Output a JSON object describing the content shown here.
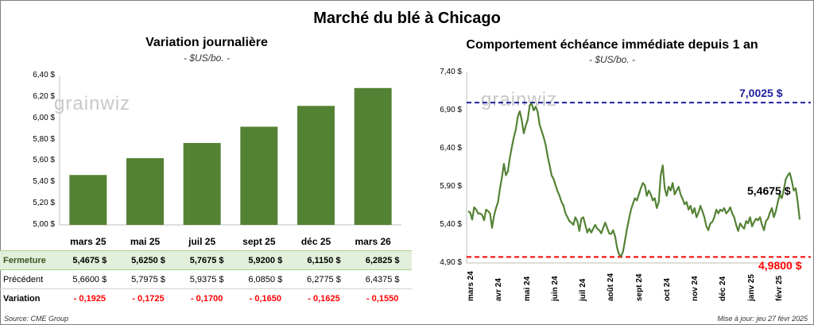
{
  "title": "Marché du blé à Chicago",
  "source": "Source: CME Group",
  "updated": "Mise à jour: jeu 27 févr 2025",
  "watermark": "grainwiz",
  "table": {
    "row_labels": [
      "Fermeture",
      "Précédent",
      "Variation"
    ],
    "closing": [
      "5,4675  $",
      "5,6250  $",
      "5,7675  $",
      "5,9200  $",
      "6,1150  $",
      "6,2825  $"
    ],
    "previous": [
      "5,6600  $",
      "5,7975  $",
      "5,9375  $",
      "6,0850  $",
      "6,2775  $",
      "6,4375  $"
    ],
    "change": [
      "- 0,1925",
      "- 0,1725",
      "- 0,1700",
      "- 0,1650",
      "- 0,1625",
      "- 0,1550"
    ]
  },
  "colors": {
    "bar": "#548235",
    "line": "#548235",
    "high": "#1f1fa0",
    "low": "#ff0000"
  },
  "chart_data": [
    {
      "type": "bar",
      "title": "Variation journalière",
      "subtitle": "- $US/bo. -",
      "categories": [
        "mars 25",
        "mai 25",
        "juil 25",
        "sept 25",
        "déc 25",
        "mars 26"
      ],
      "values": [
        5.4675,
        5.625,
        5.7675,
        5.92,
        6.115,
        6.2825
      ],
      "ylim": [
        5.0,
        6.4
      ],
      "yticks": [
        "5,00 $",
        "5,20 $",
        "5,40 $",
        "5,60 $",
        "5,80 $",
        "6,00 $",
        "6,20 $",
        "6,40 $"
      ],
      "grid": false
    },
    {
      "type": "line",
      "title": "Comportement échéance immédiate depuis 1 an",
      "subtitle": "- $US/bo. -",
      "ylim": [
        4.9,
        7.4
      ],
      "yticks": [
        "4,90 $",
        "5,40 $",
        "5,90 $",
        "6,40 $",
        "6,90 $",
        "7,40 $"
      ],
      "xticks": [
        "mars 24",
        "avr 24",
        "mai 24",
        "juin 24",
        "juil 24",
        "août 24",
        "sept 24",
        "oct 24",
        "nov 24",
        "déc 24",
        "janv 25",
        "févr 25"
      ],
      "high": {
        "value": 7.0025,
        "label": "7,0025 $"
      },
      "low": {
        "value": 4.98,
        "label": "4,9800 $"
      },
      "last": {
        "value": 5.4675,
        "label": "5,4675 $"
      },
      "series": [
        {
          "values": [
            5.58,
            5.56,
            5.47,
            5.63,
            5.6,
            5.55,
            5.55,
            5.53,
            5.46,
            5.6,
            5.58,
            5.55,
            5.36,
            5.52,
            5.62,
            5.7,
            5.88,
            6.02,
            6.2,
            6.05,
            6.1,
            6.28,
            6.42,
            6.55,
            6.65,
            6.82,
            6.89,
            6.77,
            6.6,
            6.7,
            6.78,
            6.97,
            6.99,
            6.9,
            6.95,
            6.88,
            6.71,
            6.63,
            6.55,
            6.45,
            6.3,
            6.18,
            6.05,
            6.0,
            5.92,
            5.84,
            5.78,
            5.7,
            5.65,
            5.55,
            5.5,
            5.45,
            5.43,
            5.4,
            5.5,
            5.45,
            5.32,
            5.48,
            5.5,
            5.4,
            5.3,
            5.35,
            5.3,
            5.35,
            5.4,
            5.35,
            5.33,
            5.29,
            5.36,
            5.43,
            5.36,
            5.29,
            5.28,
            5.33,
            5.25,
            5.1,
            5.01,
            4.99,
            5.05,
            5.2,
            5.35,
            5.48,
            5.6,
            5.68,
            5.75,
            5.72,
            5.8,
            5.88,
            5.95,
            5.92,
            5.78,
            5.85,
            5.8,
            5.72,
            5.75,
            5.62,
            5.7,
            6.05,
            6.18,
            5.88,
            5.78,
            5.9,
            5.85,
            5.95,
            5.8,
            5.85,
            5.9,
            5.8,
            5.74,
            5.67,
            5.7,
            5.6,
            5.65,
            5.55,
            5.62,
            5.5,
            5.56,
            5.65,
            5.58,
            5.5,
            5.38,
            5.33,
            5.42,
            5.44,
            5.5,
            5.6,
            5.55,
            5.6,
            5.58,
            5.62,
            5.55,
            5.58,
            5.63,
            5.55,
            5.5,
            5.4,
            5.32,
            5.42,
            5.38,
            5.35,
            5.45,
            5.42,
            5.5,
            5.38,
            5.44,
            5.48,
            5.46,
            5.5,
            5.4,
            5.33,
            5.45,
            5.48,
            5.56,
            5.62,
            5.5,
            5.58,
            5.7,
            5.8,
            5.75,
            5.86,
            6.0,
            6.05,
            6.08,
            5.98,
            5.85,
            5.88,
            5.7,
            5.47
          ]
        }
      ]
    }
  ]
}
